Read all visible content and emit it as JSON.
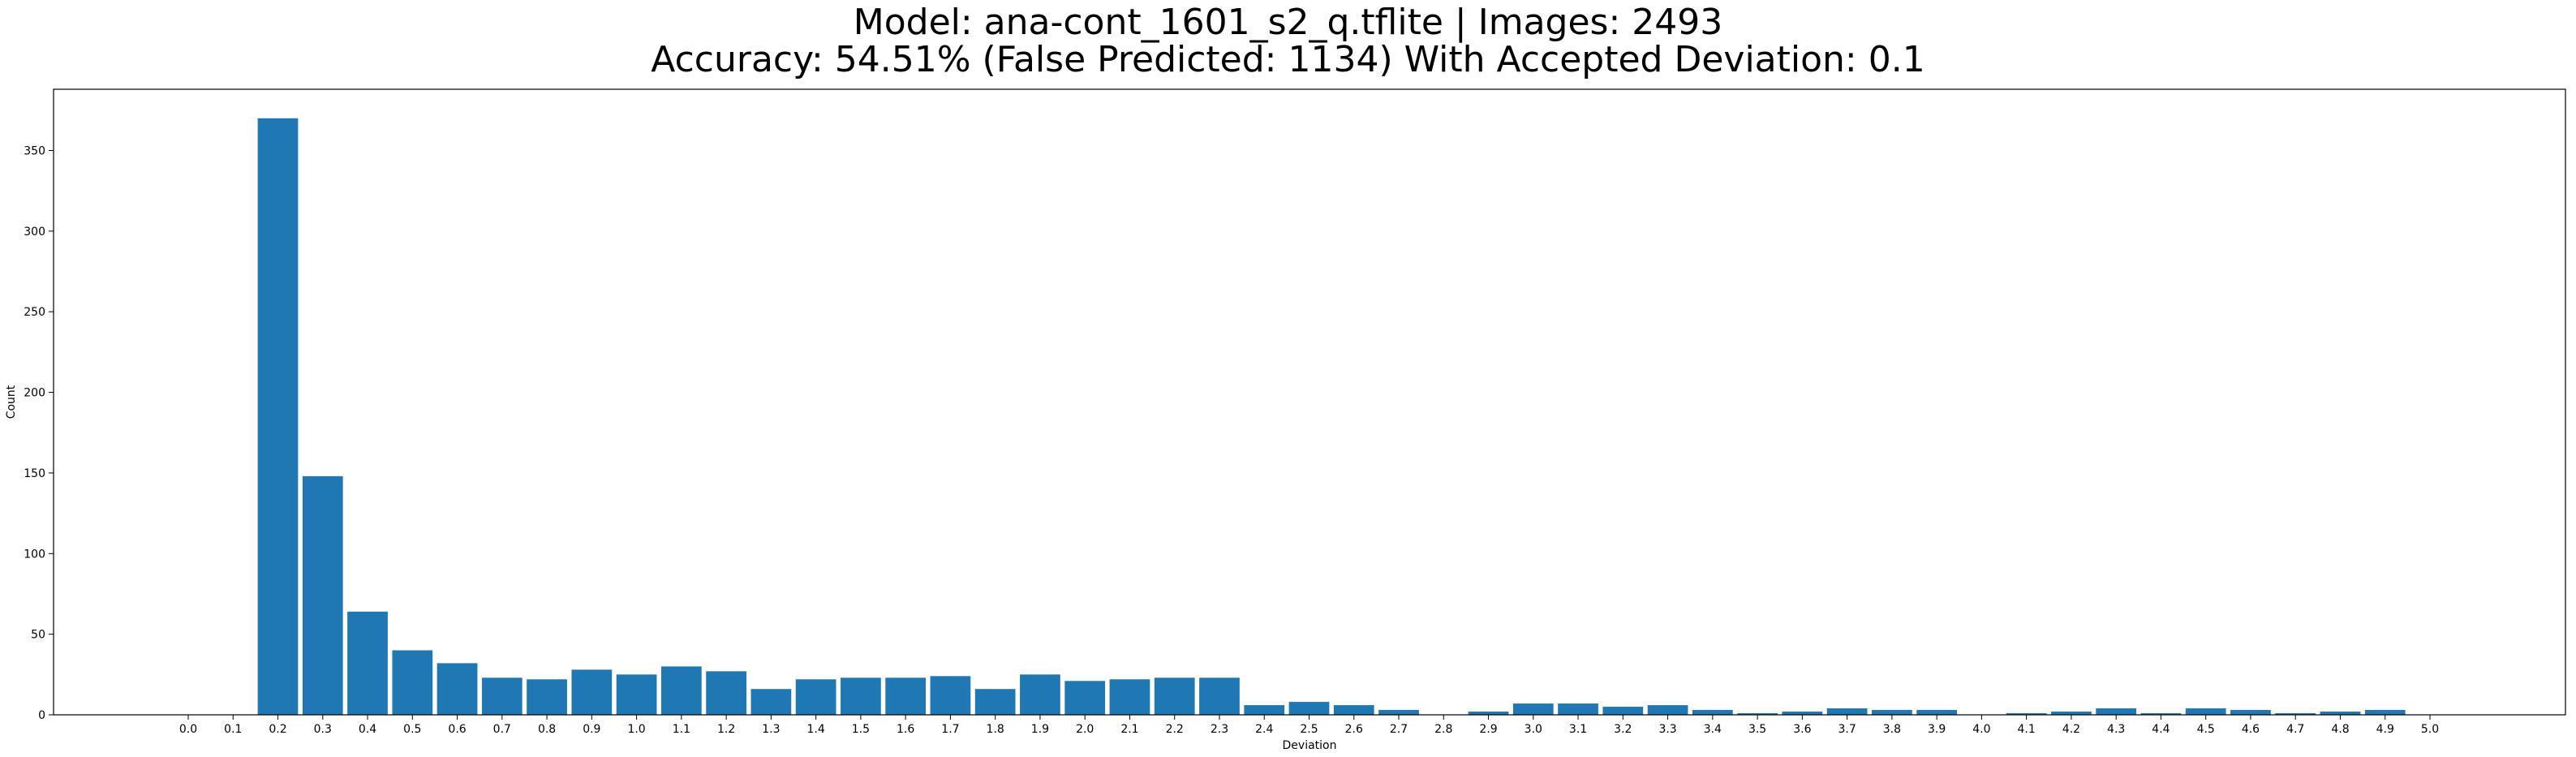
{
  "chart_data": {
    "type": "bar",
    "title_lines": [
      "Model: ana-cont_1601_s2_q.tflite  |  Images: 2493",
      "Accuracy: 54.51% (False Predicted: 1134) With Accepted Deviation: 0.1"
    ],
    "xlabel": "Deviation",
    "ylabel": "Count",
    "categories": [
      "0.0",
      "0.1",
      "0.2",
      "0.3",
      "0.4",
      "0.5",
      "0.6",
      "0.7",
      "0.8",
      "0.9",
      "1.0",
      "1.1",
      "1.2",
      "1.3",
      "1.4",
      "1.5",
      "1.6",
      "1.7",
      "1.8",
      "1.9",
      "2.0",
      "2.1",
      "2.2",
      "2.3",
      "2.4",
      "2.5",
      "2.6",
      "2.7",
      "2.8",
      "2.9",
      "3.0",
      "3.1",
      "3.2",
      "3.3",
      "3.4",
      "3.5",
      "3.6",
      "3.7",
      "3.8",
      "3.9",
      "4.0",
      "4.1",
      "4.2",
      "4.3",
      "4.4",
      "4.5",
      "4.6",
      "4.7",
      "4.8",
      "4.9",
      "5.0"
    ],
    "values": [
      0,
      0,
      370,
      148,
      64,
      40,
      32,
      23,
      22,
      28,
      25,
      30,
      27,
      16,
      22,
      23,
      23,
      24,
      16,
      25,
      21,
      22,
      23,
      23,
      6,
      8,
      6,
      3,
      0,
      2,
      7,
      7,
      5,
      6,
      3,
      1,
      2,
      4,
      3,
      3,
      0,
      1,
      2,
      4,
      1,
      4,
      3,
      1,
      2,
      3,
      0
    ],
    "ylim": [
      0,
      388
    ],
    "yticks": [
      "0",
      "50",
      "100",
      "150",
      "200",
      "250",
      "300",
      "350"
    ],
    "grid": false,
    "legend": "none",
    "bar_color": "#1f77b4"
  }
}
